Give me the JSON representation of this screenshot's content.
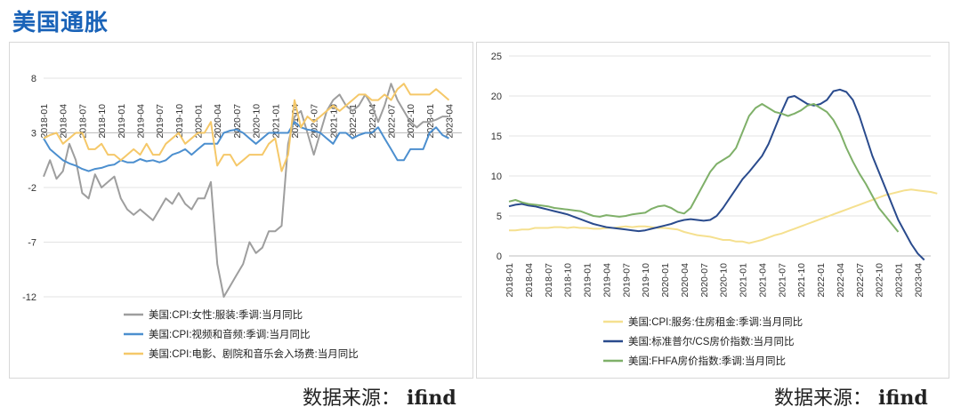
{
  "page_title": "美国通胀",
  "sources": [
    {
      "label": "数据来源：",
      "name": "ifind"
    },
    {
      "label": "数据来源：",
      "name": "ifind"
    }
  ],
  "chart_data": [
    {
      "type": "line",
      "yticks": [
        8,
        3,
        -2,
        -7,
        -12
      ],
      "ylim": [
        -12,
        8
      ],
      "x_tick_labels": [
        "2018-01",
        "2018-04",
        "2018-07",
        "2018-10",
        "2019-01",
        "2019-04",
        "2019-07",
        "2019-10",
        "2020-01",
        "2020-04",
        "2020-07",
        "2020-10",
        "2021-01",
        "2021-04",
        "2021-07",
        "2021-10",
        "2022-01",
        "2022-04",
        "2022-07",
        "2022-10",
        "2023-01",
        "2023-04"
      ],
      "x_start": "2018-01",
      "series": [
        {
          "name": "美国:CPI:女性:服装:季调:当月同比",
          "color": "#9e9e9e",
          "values": [
            -1.0,
            0.5,
            -1.2,
            -0.5,
            2.0,
            0.5,
            -2.5,
            -3.0,
            -0.8,
            -2.0,
            -1.5,
            -1.0,
            -3.0,
            -4.0,
            -4.5,
            -4.0,
            -4.5,
            -5.0,
            -4.0,
            -3.0,
            -3.5,
            -2.5,
            -3.5,
            -4.0,
            -3.0,
            -3.0,
            -1.5,
            -9.0,
            -12.0,
            -11.0,
            -10.0,
            -9.0,
            -7.0,
            -8.0,
            -7.5,
            -6.0,
            -6.0,
            -5.5,
            2.0,
            4.5,
            5.0,
            3.0,
            1.0,
            3.0,
            5.0,
            6.0,
            6.5,
            5.5,
            5.0,
            5.5,
            6.5,
            5.5,
            4.0,
            5.5,
            7.5,
            6.0,
            5.0,
            4.0,
            3.5,
            4.0,
            4.0,
            4.2,
            4.5,
            4.5
          ]
        },
        {
          "name": "美国:CPI:视频和音频:季调:当月同比",
          "color": "#4c8fcf",
          "values": [
            2.5,
            1.5,
            1.0,
            0.5,
            0.2,
            0.0,
            -0.3,
            -0.5,
            -0.3,
            -0.2,
            0.0,
            0.1,
            0.5,
            0.3,
            0.3,
            0.6,
            0.4,
            0.5,
            0.3,
            0.5,
            1.0,
            1.2,
            1.5,
            1.0,
            1.5,
            2.0,
            2.0,
            2.0,
            3.0,
            3.2,
            3.3,
            3.0,
            2.5,
            2.0,
            2.5,
            3.0,
            3.0,
            3.0,
            3.0,
            4.0,
            3.5,
            3.3,
            3.2,
            3.0,
            2.5,
            2.0,
            3.0,
            3.0,
            2.5,
            2.8,
            3.0,
            3.0,
            3.5,
            2.5,
            1.5,
            0.5,
            0.5,
            1.5,
            1.5,
            1.5,
            3.0,
            3.5,
            2.8,
            2.5
          ]
        },
        {
          "name": "美国:CPI:电影、剧院和音乐会入场费:当月同比",
          "color": "#f5c869",
          "values": [
            2.5,
            2.8,
            3.0,
            2.0,
            2.5,
            3.0,
            3.0,
            1.5,
            1.5,
            2.0,
            1.0,
            1.0,
            0.5,
            1.0,
            1.5,
            1.0,
            2.0,
            1.0,
            1.0,
            2.0,
            2.5,
            3.0,
            2.0,
            2.5,
            3.0,
            3.0,
            4.0,
            0.0,
            1.0,
            1.0,
            0.0,
            0.5,
            1.0,
            1.0,
            1.0,
            2.0,
            2.5,
            -0.5,
            1.0,
            6.0,
            3.5,
            4.5,
            4.0,
            4.5,
            5.0,
            5.5,
            5.0,
            5.5,
            6.0,
            6.5,
            6.5,
            6.0,
            6.0,
            6.5,
            6.0,
            7.0,
            7.5,
            6.5,
            6.5,
            6.5,
            6.5,
            7.0,
            6.5,
            6.0
          ]
        }
      ]
    },
    {
      "type": "line",
      "yticks": [
        25,
        20,
        15,
        10,
        5,
        0
      ],
      "ylim": [
        0,
        25
      ],
      "x_tick_labels": [
        "2018-01",
        "2018-04",
        "2018-07",
        "2018-10",
        "2019-01",
        "2019-04",
        "2019-07",
        "2019-10",
        "2020-01",
        "2020-04",
        "2020-07",
        "2020-10",
        "2021-01",
        "2021-04",
        "2021-07",
        "2021-10",
        "2022-01",
        "2022-04",
        "2022-07",
        "2022-10",
        "2023-01",
        "2023-04"
      ],
      "x_start": "2018-01",
      "series": [
        {
          "name": "美国:CPI:服务:住房租金:季调:当月同比",
          "color": "#f5e08f",
          "values": [
            3.2,
            3.2,
            3.3,
            3.3,
            3.5,
            3.5,
            3.5,
            3.6,
            3.6,
            3.5,
            3.6,
            3.5,
            3.5,
            3.4,
            3.4,
            3.5,
            3.5,
            3.6,
            3.7,
            3.6,
            3.7,
            3.7,
            3.6,
            3.5,
            3.5,
            3.4,
            3.3,
            3.0,
            2.8,
            2.6,
            2.5,
            2.4,
            2.2,
            2.0,
            2.0,
            1.8,
            1.8,
            1.6,
            1.8,
            2.0,
            2.3,
            2.6,
            2.8,
            3.1,
            3.4,
            3.7,
            4.0,
            4.3,
            4.6,
            4.9,
            5.2,
            5.5,
            5.8,
            6.1,
            6.4,
            6.7,
            7.0,
            7.3,
            7.6,
            7.8,
            8.0,
            8.2,
            8.3,
            8.2,
            8.1,
            8.0,
            7.8
          ]
        },
        {
          "name": "美国:标准普尔/CS房价指数:当月同比",
          "color": "#2a4b8d",
          "values": [
            6.2,
            6.4,
            6.5,
            6.3,
            6.2,
            6.0,
            5.8,
            5.6,
            5.4,
            5.2,
            4.9,
            4.6,
            4.3,
            4.0,
            3.8,
            3.6,
            3.5,
            3.4,
            3.3,
            3.2,
            3.1,
            3.2,
            3.4,
            3.6,
            3.8,
            4.0,
            4.3,
            4.5,
            4.6,
            4.5,
            4.4,
            4.5,
            5.0,
            6.0,
            7.2,
            8.4,
            9.6,
            10.5,
            11.5,
            12.5,
            14.0,
            16.0,
            18.0,
            19.8,
            20.0,
            19.5,
            19.0,
            18.8,
            19.0,
            19.5,
            20.6,
            20.8,
            20.5,
            19.5,
            17.5,
            15.0,
            12.5,
            10.5,
            8.5,
            6.5,
            4.5,
            3.0,
            1.5,
            0.3,
            -0.5
          ]
        },
        {
          "name": "美国:FHFA房价指数:季调:当月同比",
          "color": "#7fb069",
          "values": [
            6.8,
            7.0,
            6.7,
            6.5,
            6.4,
            6.3,
            6.2,
            6.0,
            5.9,
            5.8,
            5.7,
            5.6,
            5.3,
            5.0,
            4.9,
            5.1,
            5.0,
            4.9,
            5.0,
            5.2,
            5.3,
            5.4,
            5.9,
            6.2,
            6.3,
            6.0,
            5.5,
            5.3,
            6.0,
            7.5,
            9.0,
            10.5,
            11.5,
            12.0,
            12.5,
            13.5,
            15.5,
            17.5,
            18.5,
            19.0,
            18.5,
            18.0,
            17.8,
            17.5,
            17.8,
            18.2,
            18.8,
            19.0,
            18.5,
            18.0,
            17.0,
            15.5,
            13.5,
            11.8,
            10.3,
            9.0,
            7.5,
            6.0,
            5.0,
            4.0,
            3.0
          ]
        }
      ]
    }
  ]
}
